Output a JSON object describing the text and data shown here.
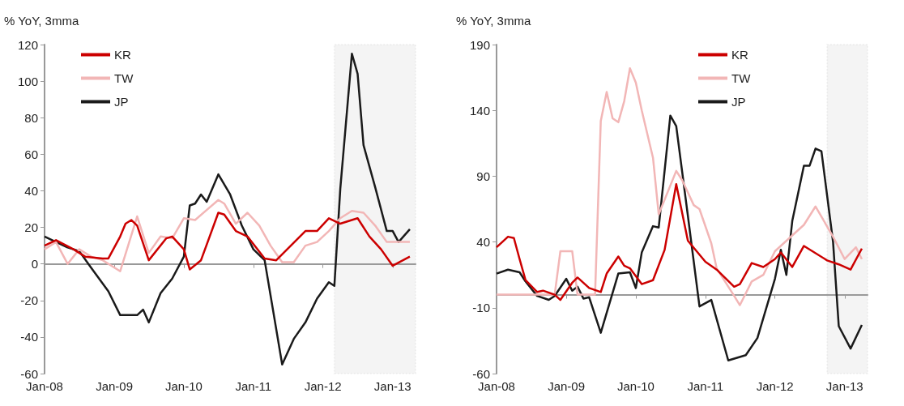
{
  "chart_data": [
    {
      "type": "line",
      "ylabel": "% YoY, 3mma",
      "legend": "top left",
      "xlim": [
        "2008-01",
        "2013-05"
      ],
      "ylim": [
        -60,
        120
      ],
      "yticks": [
        -60,
        -40,
        -20,
        0,
        20,
        40,
        60,
        80,
        100,
        120
      ],
      "xticks": [
        {
          "value": "2008-01",
          "label": "Jan-08"
        },
        {
          "value": "2009-01",
          "label": "Jan-09"
        },
        {
          "value": "2010-01",
          "label": "Jan-10"
        },
        {
          "value": "2011-01",
          "label": "Jan-11"
        },
        {
          "value": "2012-01",
          "label": "Jan-12"
        },
        {
          "value": "2013-01",
          "label": "Jan-13"
        }
      ],
      "bands": [
        {
          "axis": "x",
          "from": "2012-03",
          "to": "2013-05",
          "color": "#a6a6a6"
        }
      ],
      "series": [
        {
          "name": "KR",
          "color": "#cc0000",
          "x": [
            "2008-01",
            "2008-03",
            "2008-06",
            "2008-08",
            "2008-11",
            "2008-12",
            "2009-02",
            "2009-03",
            "2009-04",
            "2009-05",
            "2009-07",
            "2009-10",
            "2009-11",
            "2010-01",
            "2010-02",
            "2010-04",
            "2010-07",
            "2010-08",
            "2010-10",
            "2010-12",
            "2011-03",
            "2011-05",
            "2011-10",
            "2011-12",
            "2012-02",
            "2012-04",
            "2012-07",
            "2012-09",
            "2012-11",
            "2013-01",
            "2013-04"
          ],
          "values": [
            10,
            13,
            8,
            4,
            3,
            3,
            15,
            22,
            24,
            21,
            2,
            14,
            15,
            8,
            -3,
            2,
            28,
            27,
            18,
            15,
            3,
            2,
            18,
            18,
            25,
            22,
            25,
            15,
            8,
            -1,
            4
          ]
        },
        {
          "name": "TW",
          "color": "#f2b6b6",
          "x": [
            "2008-01",
            "2008-03",
            "2008-05",
            "2008-07",
            "2008-09",
            "2008-11",
            "2009-02",
            "2009-05",
            "2009-07",
            "2009-09",
            "2009-11",
            "2010-01",
            "2010-03",
            "2010-07",
            "2010-08",
            "2010-10",
            "2010-12",
            "2011-02",
            "2011-04",
            "2011-06",
            "2011-08",
            "2011-10",
            "2011-12",
            "2012-02",
            "2012-04",
            "2012-06",
            "2012-08",
            "2012-10",
            "2012-12",
            "2013-04"
          ],
          "values": [
            8,
            12,
            0,
            8,
            4,
            2,
            -4,
            26,
            6,
            15,
            14,
            25,
            24,
            35,
            33,
            22,
            28,
            21,
            10,
            1,
            1,
            10,
            12,
            18,
            25,
            29,
            28,
            21,
            12,
            12
          ]
        },
        {
          "name": "JP",
          "color": "#1a1a1a",
          "x": [
            "2008-01",
            "2008-03",
            "2008-05",
            "2008-07",
            "2008-09",
            "2008-12",
            "2009-02",
            "2009-05",
            "2009-06",
            "2009-07",
            "2009-09",
            "2009-11",
            "2010-01",
            "2010-02",
            "2010-03",
            "2010-04",
            "2010-05",
            "2010-07",
            "2010-09",
            "2010-11",
            "2011-01",
            "2011-03",
            "2011-06",
            "2011-08",
            "2011-10",
            "2011-12",
            "2012-02",
            "2012-03",
            "2012-04",
            "2012-06",
            "2012-07",
            "2012-08",
            "2012-10",
            "2012-12",
            "2013-01",
            "2013-02",
            "2013-04"
          ],
          "values": [
            15,
            12,
            9,
            7,
            -2,
            -15,
            -28,
            -28,
            -25,
            -32,
            -16,
            -8,
            4,
            32,
            33,
            38,
            34,
            49,
            38,
            21,
            8,
            2,
            -55,
            -41,
            -32,
            -19,
            -10,
            -12,
            41,
            115,
            104,
            65,
            42,
            18,
            18,
            12,
            19
          ]
        }
      ]
    },
    {
      "type": "line",
      "ylabel": "% YoY, 3mma",
      "legend": "top",
      "xlim": [
        "2008-01",
        "2013-05"
      ],
      "ylim": [
        -60,
        190
      ],
      "yticks": [
        -60,
        -10,
        40,
        90,
        140,
        190
      ],
      "xticks": [
        {
          "value": "2008-01",
          "label": "Jan-08"
        },
        {
          "value": "2009-01",
          "label": "Jan-09"
        },
        {
          "value": "2010-01",
          "label": "Jan-10"
        },
        {
          "value": "2011-01",
          "label": "Jan-11"
        },
        {
          "value": "2012-01",
          "label": "Jan-12"
        },
        {
          "value": "2013-01",
          "label": "Jan-13"
        }
      ],
      "bands": [
        {
          "axis": "x",
          "from": "2012-10",
          "to": "2013-05",
          "color": "#a6a6a6"
        }
      ],
      "series": [
        {
          "name": "KR",
          "color": "#cc0000",
          "x": [
            "2008-01",
            "2008-03",
            "2008-04",
            "2008-05",
            "2008-06",
            "2008-08",
            "2008-09",
            "2008-11",
            "2008-12",
            "2009-02",
            "2009-03",
            "2009-05",
            "2009-07",
            "2009-08",
            "2009-10",
            "2009-11",
            "2009-12",
            "2010-02",
            "2010-04",
            "2010-06",
            "2010-08",
            "2010-10",
            "2011-01",
            "2011-03",
            "2011-06",
            "2011-07",
            "2011-09",
            "2011-11",
            "2012-01",
            "2012-02",
            "2012-04",
            "2012-06",
            "2012-10",
            "2012-12",
            "2013-02",
            "2013-04"
          ],
          "values": [
            36,
            44,
            43,
            27,
            11,
            2,
            3,
            0,
            -4,
            9,
            13,
            5,
            2,
            16,
            29,
            22,
            20,
            8,
            11,
            34,
            84,
            41,
            25,
            19,
            6,
            8,
            24,
            21,
            27,
            32,
            21,
            37,
            26,
            23,
            19,
            35
          ]
        },
        {
          "name": "TW",
          "color": "#f2b6b6",
          "x": [
            "2008-01",
            "2008-11",
            "2008-12",
            "2009-02",
            "2009-03",
            "2009-06",
            "2009-07",
            "2009-08",
            "2009-09",
            "2009-10",
            "2009-11",
            "2009-12",
            "2010-01",
            "2010-02",
            "2010-04",
            "2010-05",
            "2010-08",
            "2010-09",
            "2010-11",
            "2010-12",
            "2011-02",
            "2011-03",
            "2011-06",
            "2011-07",
            "2011-09",
            "2011-11",
            "2012-01",
            "2012-04",
            "2012-06",
            "2012-08",
            "2012-11",
            "2013-01",
            "2013-03",
            "2013-04"
          ],
          "values": [
            0,
            0,
            33,
            33,
            0,
            0,
            132,
            154,
            134,
            131,
            147,
            172,
            161,
            140,
            104,
            61,
            94,
            87,
            68,
            65,
            39,
            20,
            -1,
            -8,
            10,
            15,
            33,
            45,
            53,
            67,
            44,
            27,
            36,
            27
          ]
        },
        {
          "name": "JP",
          "color": "#1a1a1a",
          "x": [
            "2008-01",
            "2008-03",
            "2008-05",
            "2008-06",
            "2008-08",
            "2008-10",
            "2008-11",
            "2009-01",
            "2009-02",
            "2009-03",
            "2009-04",
            "2009-05",
            "2009-07",
            "2009-10",
            "2009-12",
            "2010-01",
            "2010-02",
            "2010-04",
            "2010-05",
            "2010-07",
            "2010-08",
            "2010-10",
            "2010-12",
            "2011-02",
            "2011-05",
            "2011-08",
            "2011-10",
            "2012-01",
            "2012-02",
            "2012-03",
            "2012-04",
            "2012-06",
            "2012-07",
            "2012-08",
            "2012-09",
            "2012-11",
            "2012-12",
            "2013-02",
            "2013-04"
          ],
          "values": [
            16,
            19,
            17,
            10,
            -1,
            -4,
            -1,
            12,
            3,
            6,
            -3,
            -2,
            -29,
            16,
            17,
            5,
            32,
            52,
            51,
            136,
            128,
            60,
            -9,
            -4,
            -50,
            -46,
            -33,
            12,
            34,
            15,
            56,
            98,
            98,
            111,
            109,
            40,
            -24,
            -41,
            -23
          ]
        }
      ]
    }
  ]
}
